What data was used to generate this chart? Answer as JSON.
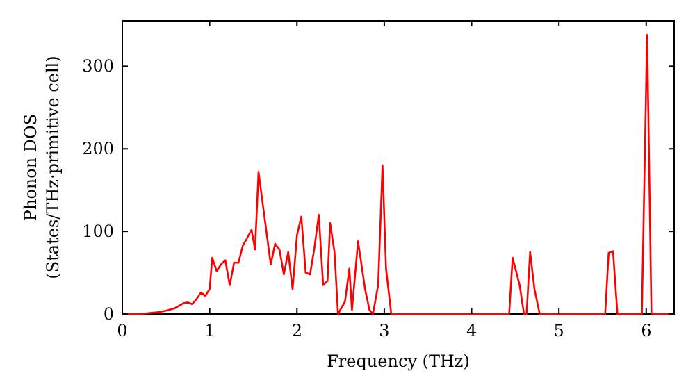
{
  "chart_data": {
    "type": "line",
    "xlabel": "Frequency (THz)",
    "ylabel": "Phonon DOS\n(States/THz·primitive cell)",
    "xlim": [
      0,
      6.32
    ],
    "ylim": [
      0,
      355
    ],
    "xticks": [
      0,
      1,
      2,
      3,
      4,
      5,
      6
    ],
    "yticks": [
      0,
      100,
      200,
      300
    ],
    "grid": false,
    "marker": "none",
    "line_style": "solid",
    "series": [
      {
        "color": "#ff0000",
        "x": [
          0,
          0.2,
          0.3,
          0.4,
          0.5,
          0.6,
          0.65,
          0.7,
          0.75,
          0.8,
          0.85,
          0.9,
          0.95,
          1.0,
          1.03,
          1.08,
          1.13,
          1.18,
          1.23,
          1.28,
          1.33,
          1.38,
          1.42,
          1.48,
          1.52,
          1.56,
          1.6,
          1.65,
          1.7,
          1.75,
          1.8,
          1.85,
          1.9,
          1.95,
          2.0,
          2.05,
          2.1,
          2.15,
          2.2,
          2.25,
          2.3,
          2.35,
          2.38,
          2.43,
          2.47,
          2.55,
          2.6,
          2.63,
          2.7,
          2.78,
          2.83,
          2.87,
          2.93,
          2.98,
          3.02,
          3.08,
          4.43,
          4.47,
          4.55,
          4.6,
          4.63,
          4.67,
          4.72,
          4.78,
          5.53,
          5.57,
          5.62,
          5.67,
          5.95,
          6.01,
          6.06,
          6.32
        ],
        "values": [
          0,
          0,
          1,
          2,
          4,
          7,
          10,
          13,
          14,
          12,
          18,
          26,
          22,
          30,
          68,
          52,
          60,
          65,
          35,
          62,
          62,
          83,
          90,
          102,
          78,
          172,
          140,
          100,
          60,
          85,
          78,
          48,
          75,
          30,
          95,
          118,
          50,
          48,
          80,
          120,
          35,
          40,
          110,
          75,
          0,
          15,
          55,
          5,
          88,
          30,
          5,
          0,
          35,
          180,
          55,
          0,
          0,
          68,
          35,
          0,
          0,
          75,
          30,
          0,
          0,
          74,
          76,
          0,
          0,
          338,
          0,
          0
        ]
      }
    ]
  }
}
